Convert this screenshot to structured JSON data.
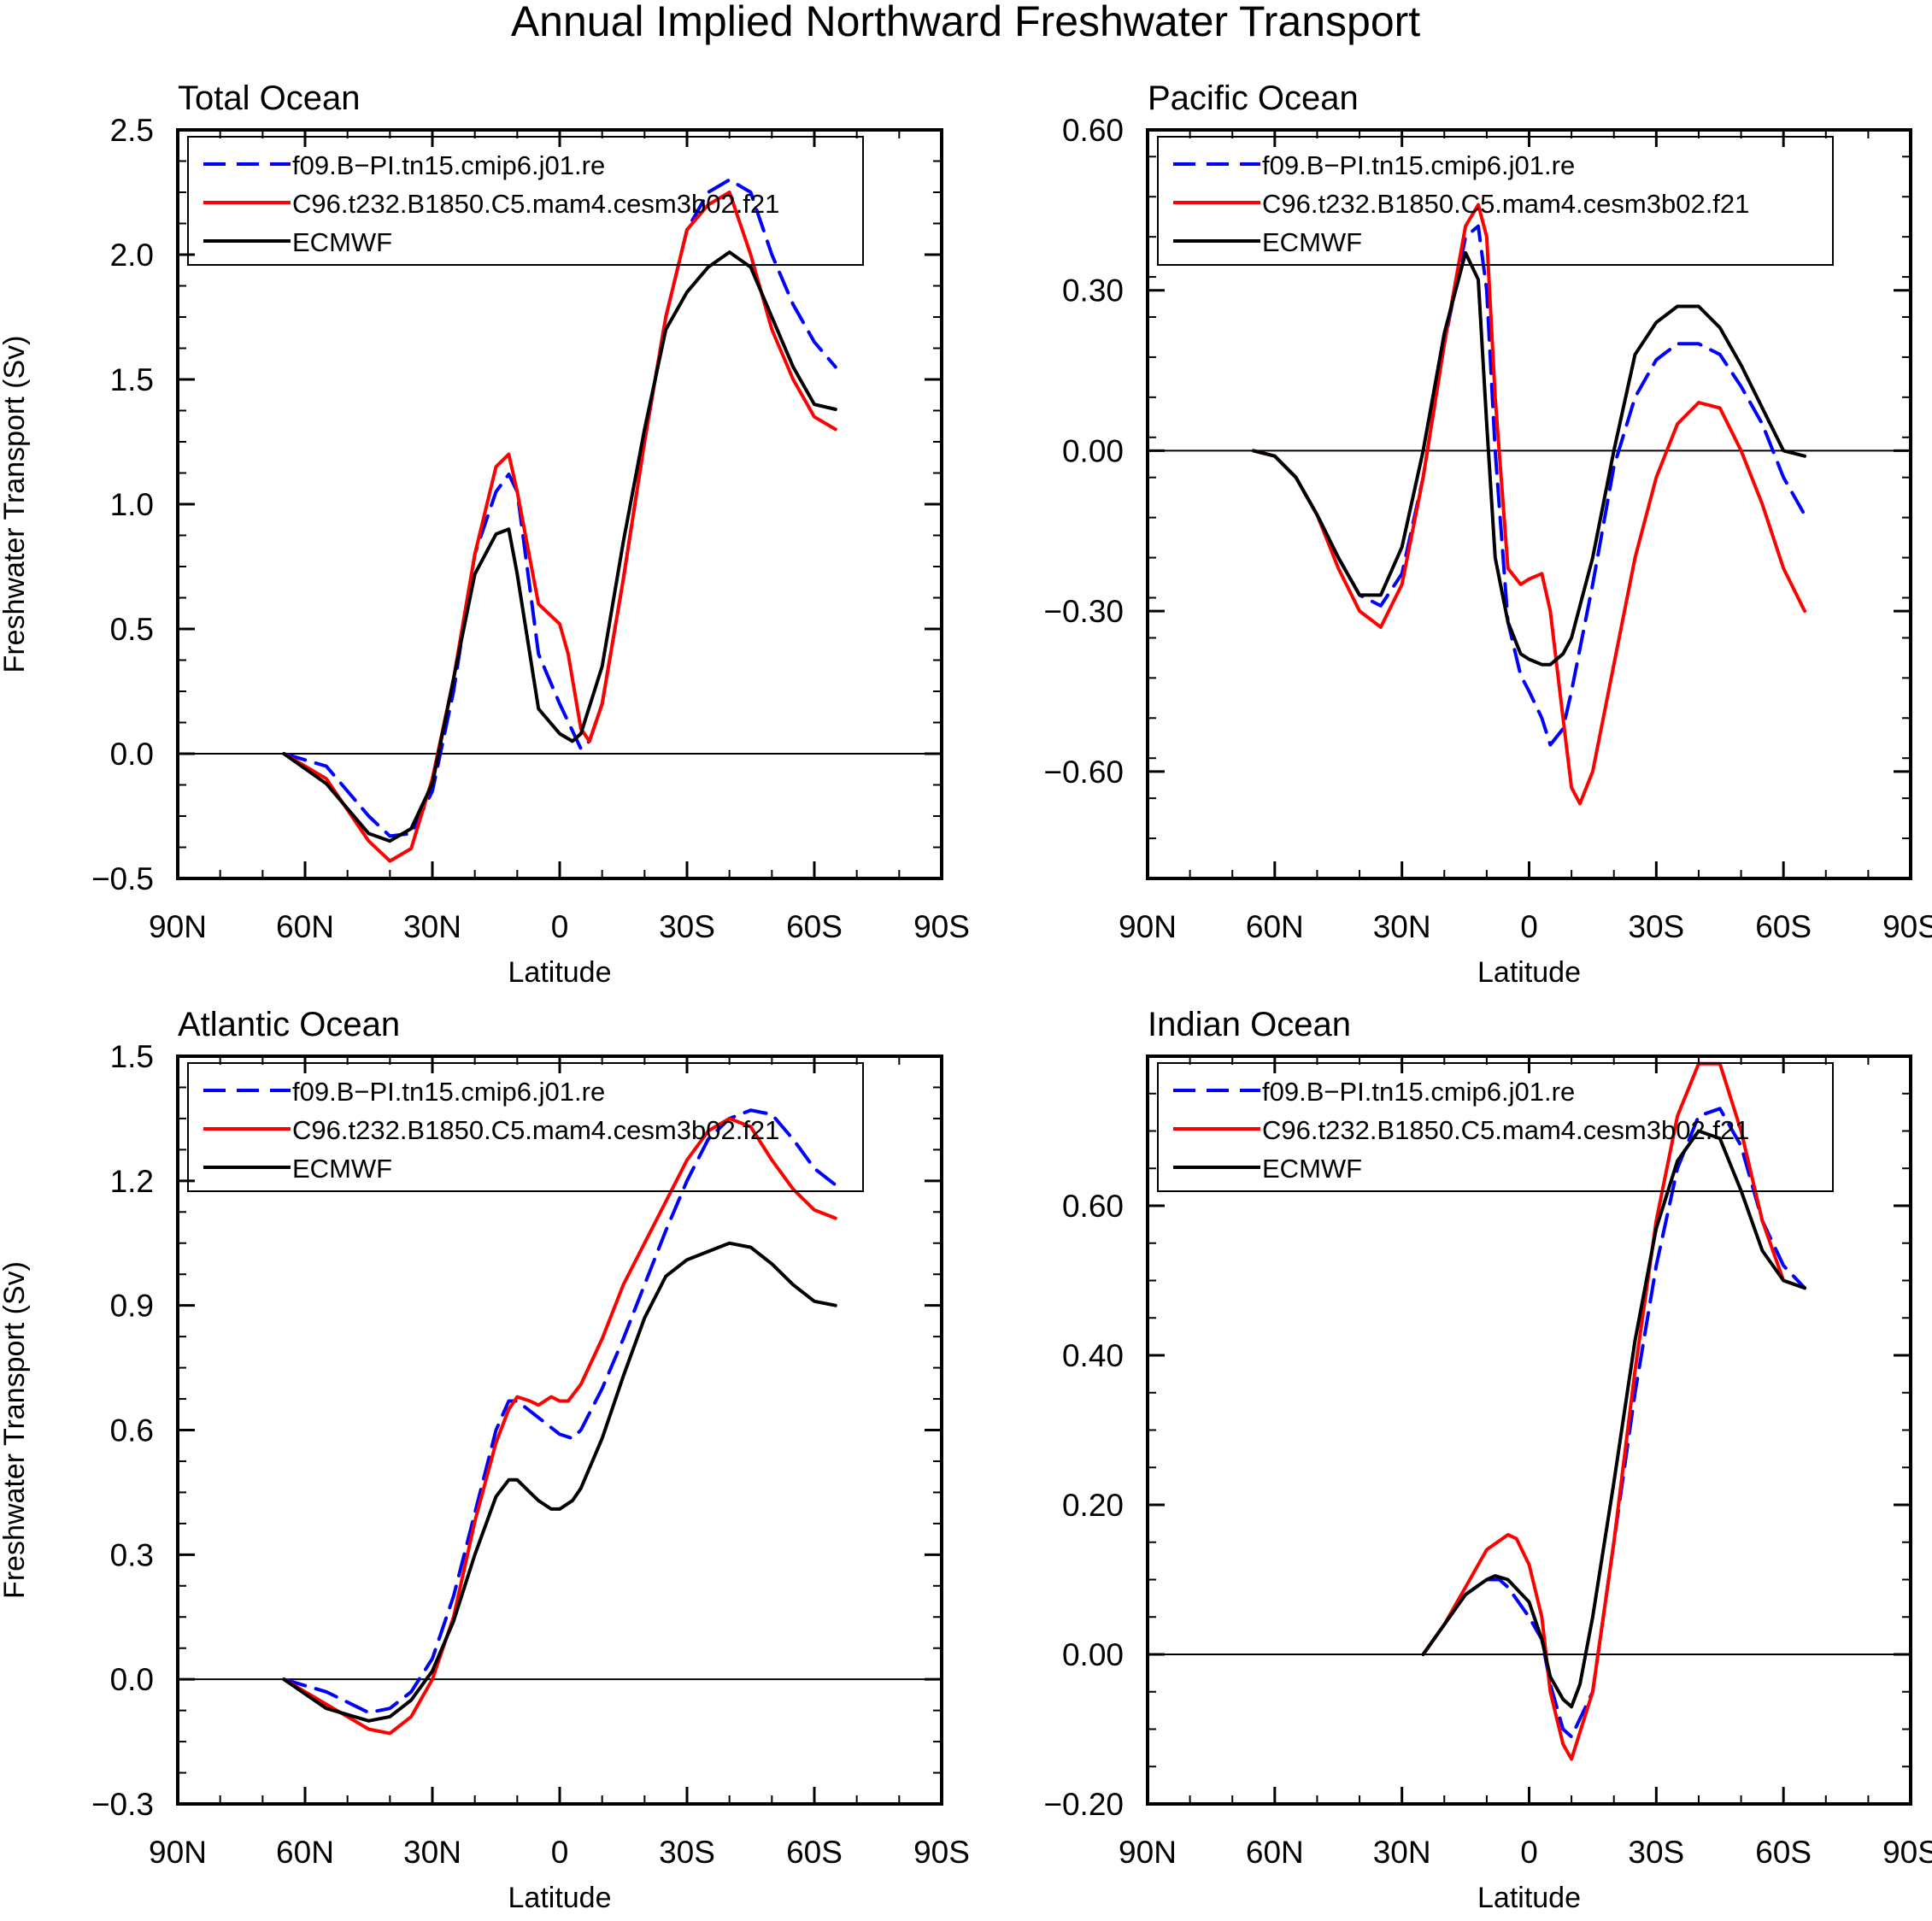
{
  "title": "Annual Implied Northward Freshwater Transport",
  "legend_labels": [
    "f09.B−PI.tn15.cmip6.j01.re",
    "C96.t232.B1850.C5.mam4.cesm3b02.f21",
    "ECMWF"
  ],
  "colors": {
    "blue": "#0000ff",
    "red": "#ff0000",
    "black": "#000000"
  },
  "chart_data": [
    {
      "type": "line",
      "title": "Total Ocean",
      "xlabel": "Latitude",
      "ylabel": "Freshwater Transport (Sv)",
      "xlim": [
        90,
        -90
      ],
      "ylim": [
        -0.5,
        2.5
      ],
      "yticks": [
        -0.5,
        0.0,
        0.5,
        1.0,
        1.5,
        2.0,
        2.5
      ],
      "ytick_labels": [
        "−0.5",
        "0.0",
        "0.5",
        "1.0",
        "1.5",
        "2.0",
        "2.5"
      ],
      "xtick_labels": [
        "90N",
        "60N",
        "30N",
        "0",
        "30S",
        "60S",
        "90S"
      ],
      "legend": "top-left",
      "series": [
        {
          "name": "f09.B−PI.tn15.cmip6.j01.re",
          "color": "blue",
          "dash": true,
          "x": [
            65,
            55,
            45,
            40,
            35,
            30,
            25,
            20,
            15,
            12,
            10,
            5,
            0,
            -5,
            -7,
            -10,
            -15,
            -20,
            -25,
            -30,
            -35,
            -40,
            -45,
            -50,
            -55,
            -60,
            -65
          ],
          "y": [
            0,
            -0.05,
            -0.25,
            -0.33,
            -0.32,
            -0.15,
            0.25,
            0.8,
            1.05,
            1.12,
            1.05,
            0.4,
            0.2,
            0.02,
            0.05,
            0.2,
            0.7,
            1.25,
            1.75,
            2.1,
            2.25,
            2.3,
            2.25,
            2.0,
            1.8,
            1.65,
            1.55
          ]
        },
        {
          "name": "C96.t232.B1850.C5.mam4.cesm3b02.f21",
          "color": "red",
          "dash": false,
          "x": [
            65,
            55,
            45,
            40,
            35,
            30,
            25,
            20,
            15,
            12,
            10,
            5,
            0,
            -2,
            -5,
            -7,
            -10,
            -15,
            -20,
            -25,
            -30,
            -35,
            -40,
            -45,
            -50,
            -55,
            -60,
            -65
          ],
          "y": [
            0,
            -0.1,
            -0.35,
            -0.43,
            -0.38,
            -0.1,
            0.3,
            0.8,
            1.15,
            1.2,
            1.05,
            0.6,
            0.52,
            0.4,
            0.1,
            0.05,
            0.2,
            0.7,
            1.25,
            1.75,
            2.1,
            2.2,
            2.25,
            2.0,
            1.7,
            1.5,
            1.35,
            1.3
          ]
        },
        {
          "name": "ECMWF",
          "color": "black",
          "dash": false,
          "x": [
            65,
            55,
            45,
            40,
            35,
            30,
            25,
            20,
            15,
            12,
            10,
            5,
            0,
            -3,
            -5,
            -10,
            -15,
            -20,
            -25,
            -30,
            -35,
            -40,
            -45,
            -50,
            -55,
            -60,
            -65
          ],
          "y": [
            0,
            -0.12,
            -0.32,
            -0.35,
            -0.3,
            -0.12,
            0.3,
            0.72,
            0.88,
            0.9,
            0.72,
            0.18,
            0.08,
            0.05,
            0.08,
            0.35,
            0.85,
            1.3,
            1.7,
            1.85,
            1.95,
            2.01,
            1.95,
            1.75,
            1.55,
            1.4,
            1.38
          ]
        }
      ]
    },
    {
      "type": "line",
      "title": "Pacific Ocean",
      "xlabel": "Latitude",
      "ylabel": "",
      "xlim": [
        90,
        -90
      ],
      "ylim": [
        -0.8,
        0.6
      ],
      "yticks": [
        -0.6,
        -0.3,
        0.0,
        0.3,
        0.6
      ],
      "ytick_labels": [
        "−0.60",
        "−0.30",
        "0.00",
        "0.30",
        "0.60"
      ],
      "xtick_labels": [
        "90N",
        "60N",
        "30N",
        "0",
        "30S",
        "60S",
        "90S"
      ],
      "legend": "top-left",
      "series": [
        {
          "name": "f09.B−PI.tn15.cmip6.j01.re",
          "color": "blue",
          "dash": true,
          "x": [
            65,
            60,
            55,
            50,
            45,
            40,
            35,
            30,
            25,
            20,
            15,
            12,
            10,
            8,
            5,
            2,
            0,
            -3,
            -5,
            -8,
            -10,
            -15,
            -20,
            -25,
            -30,
            -35,
            -40,
            -45,
            -50,
            -55,
            -60,
            -65
          ],
          "y": [
            0,
            -0.01,
            -0.05,
            -0.12,
            -0.2,
            -0.27,
            -0.29,
            -0.23,
            -0.05,
            0.2,
            0.4,
            0.42,
            0.3,
            0.0,
            -0.32,
            -0.42,
            -0.45,
            -0.5,
            -0.55,
            -0.52,
            -0.45,
            -0.25,
            -0.03,
            0.1,
            0.17,
            0.2,
            0.2,
            0.18,
            0.12,
            0.05,
            -0.05,
            -0.12
          ]
        },
        {
          "name": "C96.t232.B1850.C5.mam4.cesm3b02.f21",
          "color": "red",
          "dash": false,
          "x": [
            65,
            60,
            55,
            50,
            45,
            40,
            35,
            30,
            25,
            20,
            15,
            12,
            10,
            8,
            5,
            2,
            0,
            -3,
            -5,
            -8,
            -10,
            -12,
            -15,
            -20,
            -25,
            -30,
            -35,
            -40,
            -45,
            -50,
            -55,
            -60,
            -65
          ],
          "y": [
            0,
            -0.01,
            -0.05,
            -0.12,
            -0.22,
            -0.3,
            -0.33,
            -0.25,
            -0.05,
            0.2,
            0.42,
            0.46,
            0.4,
            0.1,
            -0.22,
            -0.25,
            -0.24,
            -0.23,
            -0.3,
            -0.5,
            -0.63,
            -0.66,
            -0.6,
            -0.4,
            -0.2,
            -0.05,
            0.05,
            0.09,
            0.08,
            0.0,
            -0.1,
            -0.22,
            -0.3
          ]
        },
        {
          "name": "ECMWF",
          "color": "black",
          "dash": false,
          "x": [
            65,
            60,
            55,
            50,
            45,
            40,
            35,
            30,
            25,
            20,
            15,
            12,
            10,
            8,
            5,
            2,
            0,
            -3,
            -5,
            -8,
            -10,
            -15,
            -20,
            -25,
            -30,
            -35,
            -40,
            -45,
            -50,
            -55,
            -60,
            -65
          ],
          "y": [
            0,
            -0.01,
            -0.05,
            -0.12,
            -0.2,
            -0.27,
            -0.27,
            -0.18,
            0.0,
            0.22,
            0.37,
            0.32,
            0.05,
            -0.2,
            -0.32,
            -0.38,
            -0.39,
            -0.4,
            -0.4,
            -0.38,
            -0.35,
            -0.2,
            0.0,
            0.18,
            0.24,
            0.27,
            0.27,
            0.23,
            0.16,
            0.08,
            0.0,
            -0.01
          ]
        }
      ]
    },
    {
      "type": "line",
      "title": "Atlantic Ocean",
      "xlabel": "Latitude",
      "ylabel": "Freshwater Transport (Sv)",
      "xlim": [
        90,
        -90
      ],
      "ylim": [
        -0.3,
        1.5
      ],
      "yticks": [
        -0.3,
        0.0,
        0.3,
        0.6,
        0.9,
        1.2,
        1.5
      ],
      "ytick_labels": [
        "−0.3",
        "0.0",
        "0.3",
        "0.6",
        "0.9",
        "1.2",
        "1.5"
      ],
      "xtick_labels": [
        "90N",
        "60N",
        "30N",
        "0",
        "30S",
        "60S",
        "90S"
      ],
      "legend": "top-left",
      "series": [
        {
          "name": "f09.B−PI.tn15.cmip6.j01.re",
          "color": "blue",
          "dash": true,
          "x": [
            65,
            55,
            45,
            40,
            35,
            30,
            25,
            20,
            15,
            12,
            10,
            5,
            0,
            -3,
            -5,
            -10,
            -15,
            -20,
            -25,
            -30,
            -35,
            -40,
            -45,
            -50,
            -55,
            -60,
            -65
          ],
          "y": [
            0,
            -0.03,
            -0.08,
            -0.07,
            -0.03,
            0.05,
            0.2,
            0.4,
            0.6,
            0.67,
            0.67,
            0.63,
            0.59,
            0.58,
            0.6,
            0.7,
            0.82,
            0.95,
            1.08,
            1.2,
            1.3,
            1.35,
            1.37,
            1.36,
            1.3,
            1.23,
            1.19
          ]
        },
        {
          "name": "C96.t232.B1850.C5.mam4.cesm3b02.f21",
          "color": "red",
          "dash": false,
          "x": [
            65,
            55,
            45,
            40,
            35,
            30,
            25,
            20,
            15,
            12,
            10,
            7,
            5,
            2,
            0,
            -2,
            -5,
            -10,
            -15,
            -20,
            -25,
            -30,
            -35,
            -40,
            -45,
            -50,
            -55,
            -60,
            -65
          ],
          "y": [
            0,
            -0.06,
            -0.12,
            -0.13,
            -0.09,
            0.0,
            0.15,
            0.38,
            0.57,
            0.65,
            0.68,
            0.67,
            0.66,
            0.68,
            0.67,
            0.67,
            0.71,
            0.82,
            0.95,
            1.05,
            1.15,
            1.25,
            1.32,
            1.35,
            1.33,
            1.25,
            1.18,
            1.13,
            1.11
          ]
        },
        {
          "name": "ECMWF",
          "color": "black",
          "dash": false,
          "x": [
            65,
            55,
            45,
            40,
            35,
            30,
            25,
            20,
            15,
            12,
            10,
            7,
            5,
            2,
            0,
            -3,
            -5,
            -10,
            -15,
            -20,
            -25,
            -30,
            -35,
            -40,
            -45,
            -50,
            -55,
            -60,
            -65
          ],
          "y": [
            0,
            -0.07,
            -0.1,
            -0.09,
            -0.05,
            0.02,
            0.14,
            0.3,
            0.44,
            0.48,
            0.48,
            0.45,
            0.43,
            0.41,
            0.41,
            0.43,
            0.46,
            0.58,
            0.73,
            0.87,
            0.97,
            1.01,
            1.03,
            1.05,
            1.04,
            1.0,
            0.95,
            0.91,
            0.9
          ]
        }
      ]
    },
    {
      "type": "line",
      "title": "Indian Ocean",
      "xlabel": "Latitude",
      "ylabel": "",
      "xlim": [
        90,
        -90
      ],
      "ylim": [
        -0.2,
        0.8
      ],
      "yticks": [
        -0.2,
        0.0,
        0.2,
        0.4,
        0.6
      ],
      "ytick_labels": [
        "−0.20",
        "0.00",
        "0.20",
        "0.40",
        "0.60"
      ],
      "xtick_labels": [
        "90N",
        "60N",
        "30N",
        "0",
        "30S",
        "60S",
        "90S"
      ],
      "legend": "top-left",
      "series": [
        {
          "name": "f09.B−PI.tn15.cmip6.j01.re",
          "color": "blue",
          "dash": true,
          "x": [
            25,
            20,
            15,
            10,
            7,
            5,
            0,
            -3,
            -5,
            -8,
            -10,
            -15,
            -20,
            -25,
            -30,
            -35,
            -40,
            -45,
            -50,
            -55,
            -60,
            -65
          ],
          "y": [
            0,
            0.04,
            0.08,
            0.1,
            0.1,
            0.09,
            0.05,
            0.02,
            -0.04,
            -0.1,
            -0.11,
            -0.05,
            0.15,
            0.35,
            0.52,
            0.65,
            0.72,
            0.73,
            0.68,
            0.58,
            0.52,
            0.49
          ]
        },
        {
          "name": "C96.t232.B1850.C5.mam4.cesm3b02.f21",
          "color": "red",
          "dash": false,
          "x": [
            25,
            20,
            15,
            10,
            5,
            3,
            0,
            -3,
            -5,
            -8,
            -10,
            -15,
            -20,
            -25,
            -30,
            -35,
            -40,
            -45,
            -50,
            -55,
            -60,
            -65
          ],
          "y": [
            0,
            0.04,
            0.09,
            0.14,
            0.16,
            0.155,
            0.12,
            0.05,
            -0.05,
            -0.12,
            -0.14,
            -0.05,
            0.15,
            0.38,
            0.58,
            0.72,
            0.79,
            0.79,
            0.7,
            0.58,
            0.5,
            0.49
          ]
        },
        {
          "name": "ECMWF",
          "color": "black",
          "dash": false,
          "x": [
            25,
            20,
            15,
            10,
            8,
            5,
            0,
            -3,
            -5,
            -8,
            -10,
            -12,
            -15,
            -20,
            -25,
            -30,
            -35,
            -40,
            -45,
            -50,
            -55,
            -60,
            -65
          ],
          "y": [
            0,
            0.04,
            0.08,
            0.1,
            0.105,
            0.1,
            0.07,
            0.02,
            -0.03,
            -0.06,
            -0.07,
            -0.04,
            0.05,
            0.23,
            0.42,
            0.57,
            0.66,
            0.7,
            0.69,
            0.62,
            0.54,
            0.5,
            0.49
          ]
        }
      ]
    }
  ]
}
